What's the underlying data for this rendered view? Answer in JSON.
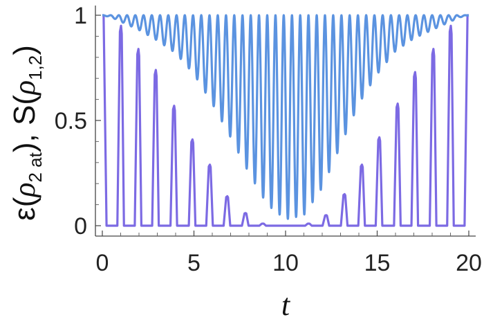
{
  "chart_data": {
    "type": "line",
    "xlabel": "t",
    "ylabel": "ε(ρ2at), S(ρ1,2)",
    "xlim": [
      0,
      20
    ],
    "ylim": [
      0,
      1
    ],
    "x_ticks": [
      0,
      5,
      10,
      15,
      20
    ],
    "x_tick_labels": [
      "0",
      "5",
      "10",
      "15",
      "20"
    ],
    "y_ticks": [
      0,
      0.5,
      1
    ],
    "y_tick_labels": [
      "0",
      "0.5",
      "1"
    ],
    "grid": false,
    "legend": "none",
    "series": [
      {
        "color": "#5b93e0",
        "style": "fast oscillation between an upper value near 1 and a lower envelope",
        "period": 0.45,
        "max_envelope": {
          "x": [
            0,
            2,
            5,
            8,
            10,
            12,
            15,
            18,
            20
          ],
          "y": [
            1.0,
            1.0,
            1.0,
            1.0,
            1.0,
            1.0,
            1.0,
            1.0,
            1.0
          ]
        },
        "min_envelope": {
          "x": [
            0,
            0.5,
            1,
            1.5,
            2,
            3,
            4,
            5,
            6,
            7,
            8,
            9,
            10,
            11,
            12,
            13,
            14,
            15,
            16,
            17,
            18,
            18.5,
            19,
            19.5,
            20
          ],
          "y": [
            1.0,
            0.99,
            0.97,
            0.95,
            0.93,
            0.88,
            0.82,
            0.72,
            0.58,
            0.42,
            0.25,
            0.1,
            0.03,
            0.05,
            0.18,
            0.38,
            0.58,
            0.72,
            0.83,
            0.89,
            0.93,
            0.95,
            0.97,
            0.99,
            1.0
          ]
        }
      },
      {
        "color": "#7c6ae3",
        "style": "periodic peaks separated by zero intervals",
        "peaks": [
          {
            "t": 0.05,
            "value": 1.0
          },
          {
            "t": 1.0,
            "value": 0.95
          },
          {
            "t": 1.95,
            "value": 0.84
          },
          {
            "t": 2.9,
            "value": 0.74
          },
          {
            "t": 3.9,
            "value": 0.57
          },
          {
            "t": 4.9,
            "value": 0.41
          },
          {
            "t": 5.85,
            "value": 0.29
          },
          {
            "t": 6.8,
            "value": 0.14
          },
          {
            "t": 7.8,
            "value": 0.06
          },
          {
            "t": 8.75,
            "value": 0.01
          },
          {
            "t": 11.25,
            "value": 0.01
          },
          {
            "t": 12.2,
            "value": 0.05
          },
          {
            "t": 13.2,
            "value": 0.15
          },
          {
            "t": 14.15,
            "value": 0.29
          },
          {
            "t": 15.1,
            "value": 0.42
          },
          {
            "t": 16.1,
            "value": 0.58
          },
          {
            "t": 17.05,
            "value": 0.73
          },
          {
            "t": 18.05,
            "value": 0.84
          },
          {
            "t": 19.0,
            "value": 0.95
          },
          {
            "t": 19.95,
            "value": 1.0
          }
        ]
      }
    ]
  },
  "axes": {
    "x_label": "t",
    "y_label_parts": {
      "epsilon": "ε(",
      "rho1": "ρ",
      "sub1": "2 at",
      "mid": "), S(",
      "rho2": "ρ",
      "sub2": "1,2",
      "end": ")"
    }
  }
}
